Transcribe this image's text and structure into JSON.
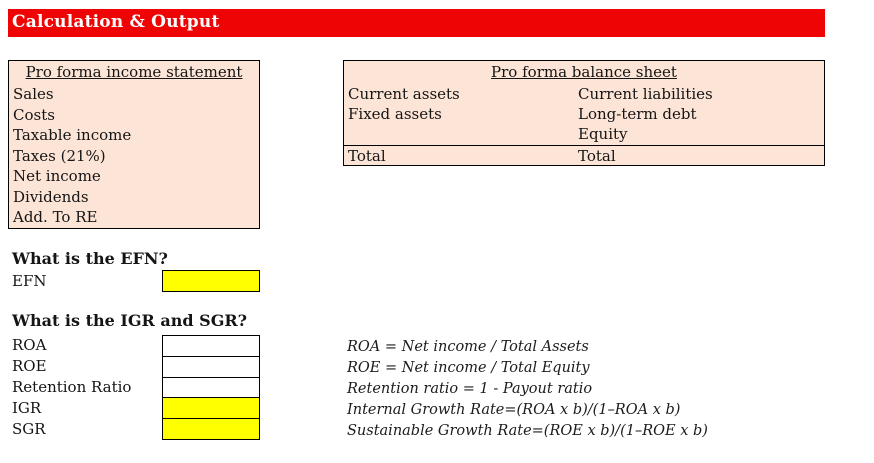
{
  "header": {
    "title": "Calculation & Output"
  },
  "colors": {
    "header_bg": "#ee0404",
    "header_text": "#ffffff",
    "panel_bg": "#fce4d6",
    "highlight": "#ffff00",
    "border": "#000000"
  },
  "income_statement": {
    "title": "Pro forma income statement",
    "rows": [
      "Sales",
      "Costs",
      "Taxable income",
      "Taxes (21%)",
      "Net income",
      "Dividends",
      "Add. To RE"
    ]
  },
  "balance_sheet": {
    "title": "Pro forma balance sheet",
    "rows": [
      {
        "left": "Current assets",
        "right": "Current liabilities"
      },
      {
        "left": "Fixed assets",
        "right": "Long-term debt"
      },
      {
        "left": "",
        "right": "Equity"
      },
      {
        "left": "Total",
        "right": "Total"
      }
    ]
  },
  "efn_section": {
    "question": "What is the EFN?",
    "label": "EFN",
    "value": ""
  },
  "growth_section": {
    "question": "What is the IGR and SGR?",
    "rows": [
      {
        "label": "ROA",
        "value": ""
      },
      {
        "label": "ROE",
        "value": ""
      },
      {
        "label": "Retention Ratio",
        "value": ""
      },
      {
        "label": "IGR",
        "value": ""
      },
      {
        "label": "SGR",
        "value": ""
      }
    ],
    "notes": [
      "ROA = Net income / Total Assets",
      "ROE = Net income / Total Equity",
      "Retention ratio = 1 - Payout ratio",
      "Internal Growth Rate=(ROA x b)/(1–ROA x b)",
      "Sustainable Growth Rate=(ROE x b)/(1–ROE x b)"
    ]
  }
}
